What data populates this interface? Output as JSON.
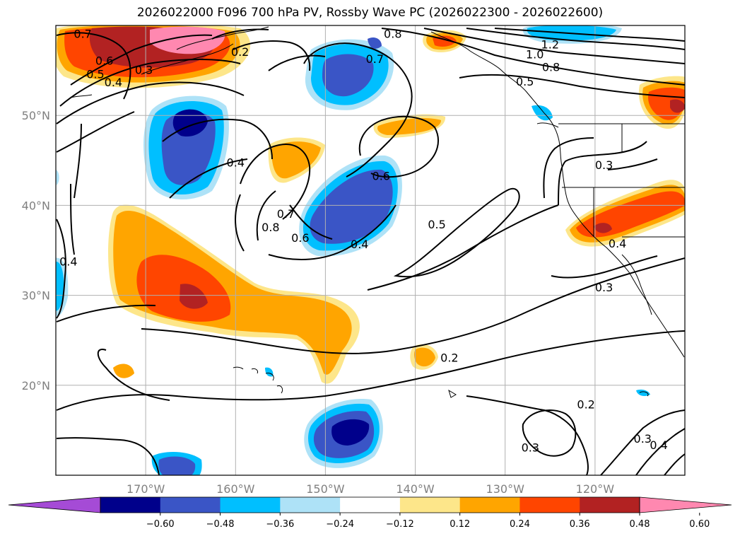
{
  "title": "2026022000 F096 700 hPa PV, Rossby Wave PC (2026022300 - 2026022600)",
  "map": {
    "lat_range": [
      10,
      60
    ],
    "lon_range": [
      -180,
      -110
    ],
    "lat_ticks": [
      {
        "value": 20,
        "label": "20°N"
      },
      {
        "value": 30,
        "label": "30°N"
      },
      {
        "value": 40,
        "label": "40°N"
      },
      {
        "value": 50,
        "label": "50°N"
      }
    ],
    "lon_ticks": [
      {
        "value": -170,
        "label": "170°W"
      },
      {
        "value": -160,
        "label": "160°W"
      },
      {
        "value": -150,
        "label": "150°W"
      },
      {
        "value": -140,
        "label": "140°W"
      },
      {
        "value": -130,
        "label": "130°W"
      },
      {
        "value": -120,
        "label": "120°W"
      }
    ],
    "grid": true,
    "contour_labels": [
      {
        "text": "0.7",
        "lon": -177.0,
        "lat": 59.1
      },
      {
        "text": "0.6",
        "lon": -174.6,
        "lat": 56.1
      },
      {
        "text": "0.5",
        "lon": -175.6,
        "lat": 54.6
      },
      {
        "text": "0.4",
        "lon": -173.6,
        "lat": 53.7
      },
      {
        "text": "0.3",
        "lon": -170.2,
        "lat": 55.1
      },
      {
        "text": "0.2",
        "lon": -159.5,
        "lat": 57.1
      },
      {
        "text": "0.8",
        "lon": -142.5,
        "lat": 59.1
      },
      {
        "text": "0.7",
        "lon": -144.5,
        "lat": 56.3
      },
      {
        "text": "1.2",
        "lon": -125.0,
        "lat": 57.9
      },
      {
        "text": "1.0",
        "lon": -126.7,
        "lat": 56.8
      },
      {
        "text": "0.8",
        "lon": -124.9,
        "lat": 55.4
      },
      {
        "text": "0.5",
        "lon": -127.8,
        "lat": 53.8
      },
      {
        "text": "0.4",
        "lon": -160.0,
        "lat": 44.8
      },
      {
        "text": "0.6",
        "lon": -143.8,
        "lat": 43.3
      },
      {
        "text": "0.7",
        "lon": -154.4,
        "lat": 39.1
      },
      {
        "text": "0.8",
        "lon": -156.1,
        "lat": 37.6
      },
      {
        "text": "0.6",
        "lon": -152.8,
        "lat": 36.4
      },
      {
        "text": "0.4",
        "lon": -146.2,
        "lat": 35.7
      },
      {
        "text": "0.5",
        "lon": -137.6,
        "lat": 37.9
      },
      {
        "text": "0.3",
        "lon": -119.0,
        "lat": 44.5
      },
      {
        "text": "0.4",
        "lon": -117.5,
        "lat": 35.8
      },
      {
        "text": "0.3",
        "lon": -119.0,
        "lat": 30.9
      },
      {
        "text": "0.4",
        "lon": -178.6,
        "lat": 33.8
      },
      {
        "text": "0.2",
        "lon": -136.2,
        "lat": 23.1
      },
      {
        "text": "0.2",
        "lon": -121.0,
        "lat": 17.9
      },
      {
        "text": "0.3",
        "lon": -127.2,
        "lat": 13.1
      },
      {
        "text": "0.3",
        "lon": -114.7,
        "lat": 14.1
      },
      {
        "text": "0.4",
        "lon": -112.9,
        "lat": 13.4
      }
    ]
  },
  "colorbar": {
    "colors": [
      "#a54bd6",
      "#00008b",
      "#3a55c6",
      "#00bfff",
      "#aee2f7",
      "#ffffff",
      "#fde68a",
      "#ffa500",
      "#ff4500",
      "#b22222",
      "#ff88b0"
    ],
    "tick_labels": [
      "-0.60",
      "-0.48",
      "-0.36",
      "-0.24",
      "-0.12",
      "0.12",
      "0.24",
      "0.36",
      "0.48",
      "0.60"
    ],
    "extend": "both"
  }
}
